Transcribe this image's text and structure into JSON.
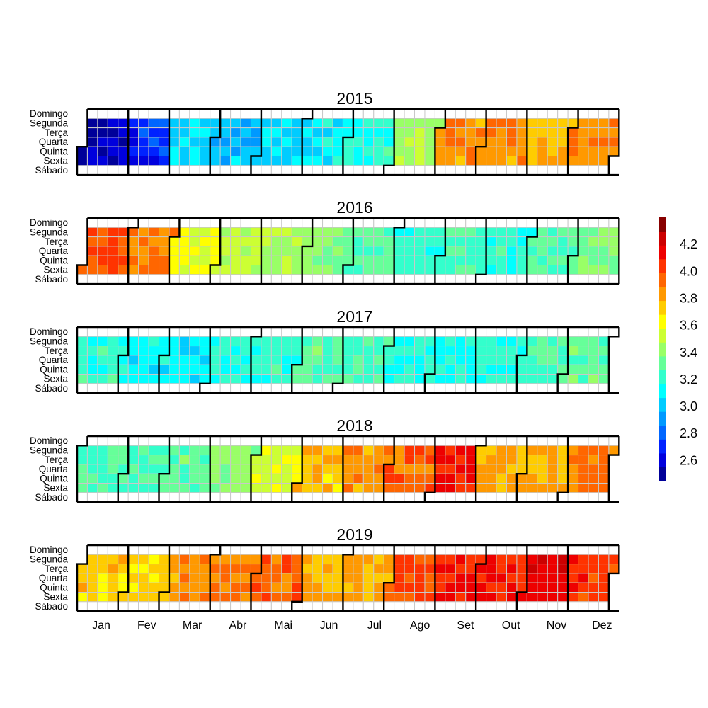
{
  "chart_data": {
    "type": "heatmap",
    "subtype": "calendar",
    "weekday_labels": [
      "Domingo",
      "Segunda",
      "Terça",
      "Quarta",
      "Quinta",
      "Sexta",
      "Sábado"
    ],
    "month_labels": [
      "Jan",
      "Fev",
      "Mar",
      "Abr",
      "Mai",
      "Jun",
      "Jul",
      "Ago",
      "Set",
      "Out",
      "Nov",
      "Dez"
    ],
    "weekdays_only": true,
    "colorbar": {
      "ticks": [
        2.6,
        2.8,
        3.0,
        3.2,
        3.4,
        3.6,
        3.8,
        4.0,
        4.2
      ],
      "range": [
        2.45,
        4.4
      ],
      "colors": [
        "#000099",
        "#0000dd",
        "#0022ff",
        "#0066ff",
        "#0099ff",
        "#00ccff",
        "#00ffff",
        "#33ffcc",
        "#66ff99",
        "#99ff66",
        "#ccff33",
        "#ffff00",
        "#ffcc00",
        "#ff9900",
        "#ff6600",
        "#ff3300",
        "#ee0000",
        "#cc0000",
        "#880000"
      ]
    },
    "years": [
      {
        "year": "2015",
        "monthly_values": [
          2.55,
          2.7,
          3.05,
          3.0,
          3.05,
          3.1,
          3.2,
          3.45,
          3.85,
          3.85,
          3.75,
          3.85
        ]
      },
      {
        "year": "2016",
        "monthly_values": [
          4.0,
          3.9,
          3.6,
          3.5,
          3.45,
          3.4,
          3.3,
          3.2,
          3.25,
          3.2,
          3.3,
          3.35
        ]
      },
      {
        "year": "2017",
        "monthly_values": [
          3.2,
          3.1,
          3.1,
          3.15,
          3.2,
          3.3,
          3.25,
          3.15,
          3.15,
          3.2,
          3.25,
          3.3
        ]
      },
      {
        "year": "2018",
        "monthly_values": [
          3.25,
          3.25,
          3.3,
          3.4,
          3.55,
          3.75,
          3.85,
          3.95,
          4.1,
          3.8,
          3.8,
          3.9
        ]
      },
      {
        "year": "2019",
        "monthly_values": [
          3.75,
          3.7,
          3.85,
          3.9,
          3.95,
          3.8,
          3.8,
          4.0,
          4.1,
          4.05,
          4.15,
          4.05
        ]
      }
    ]
  }
}
